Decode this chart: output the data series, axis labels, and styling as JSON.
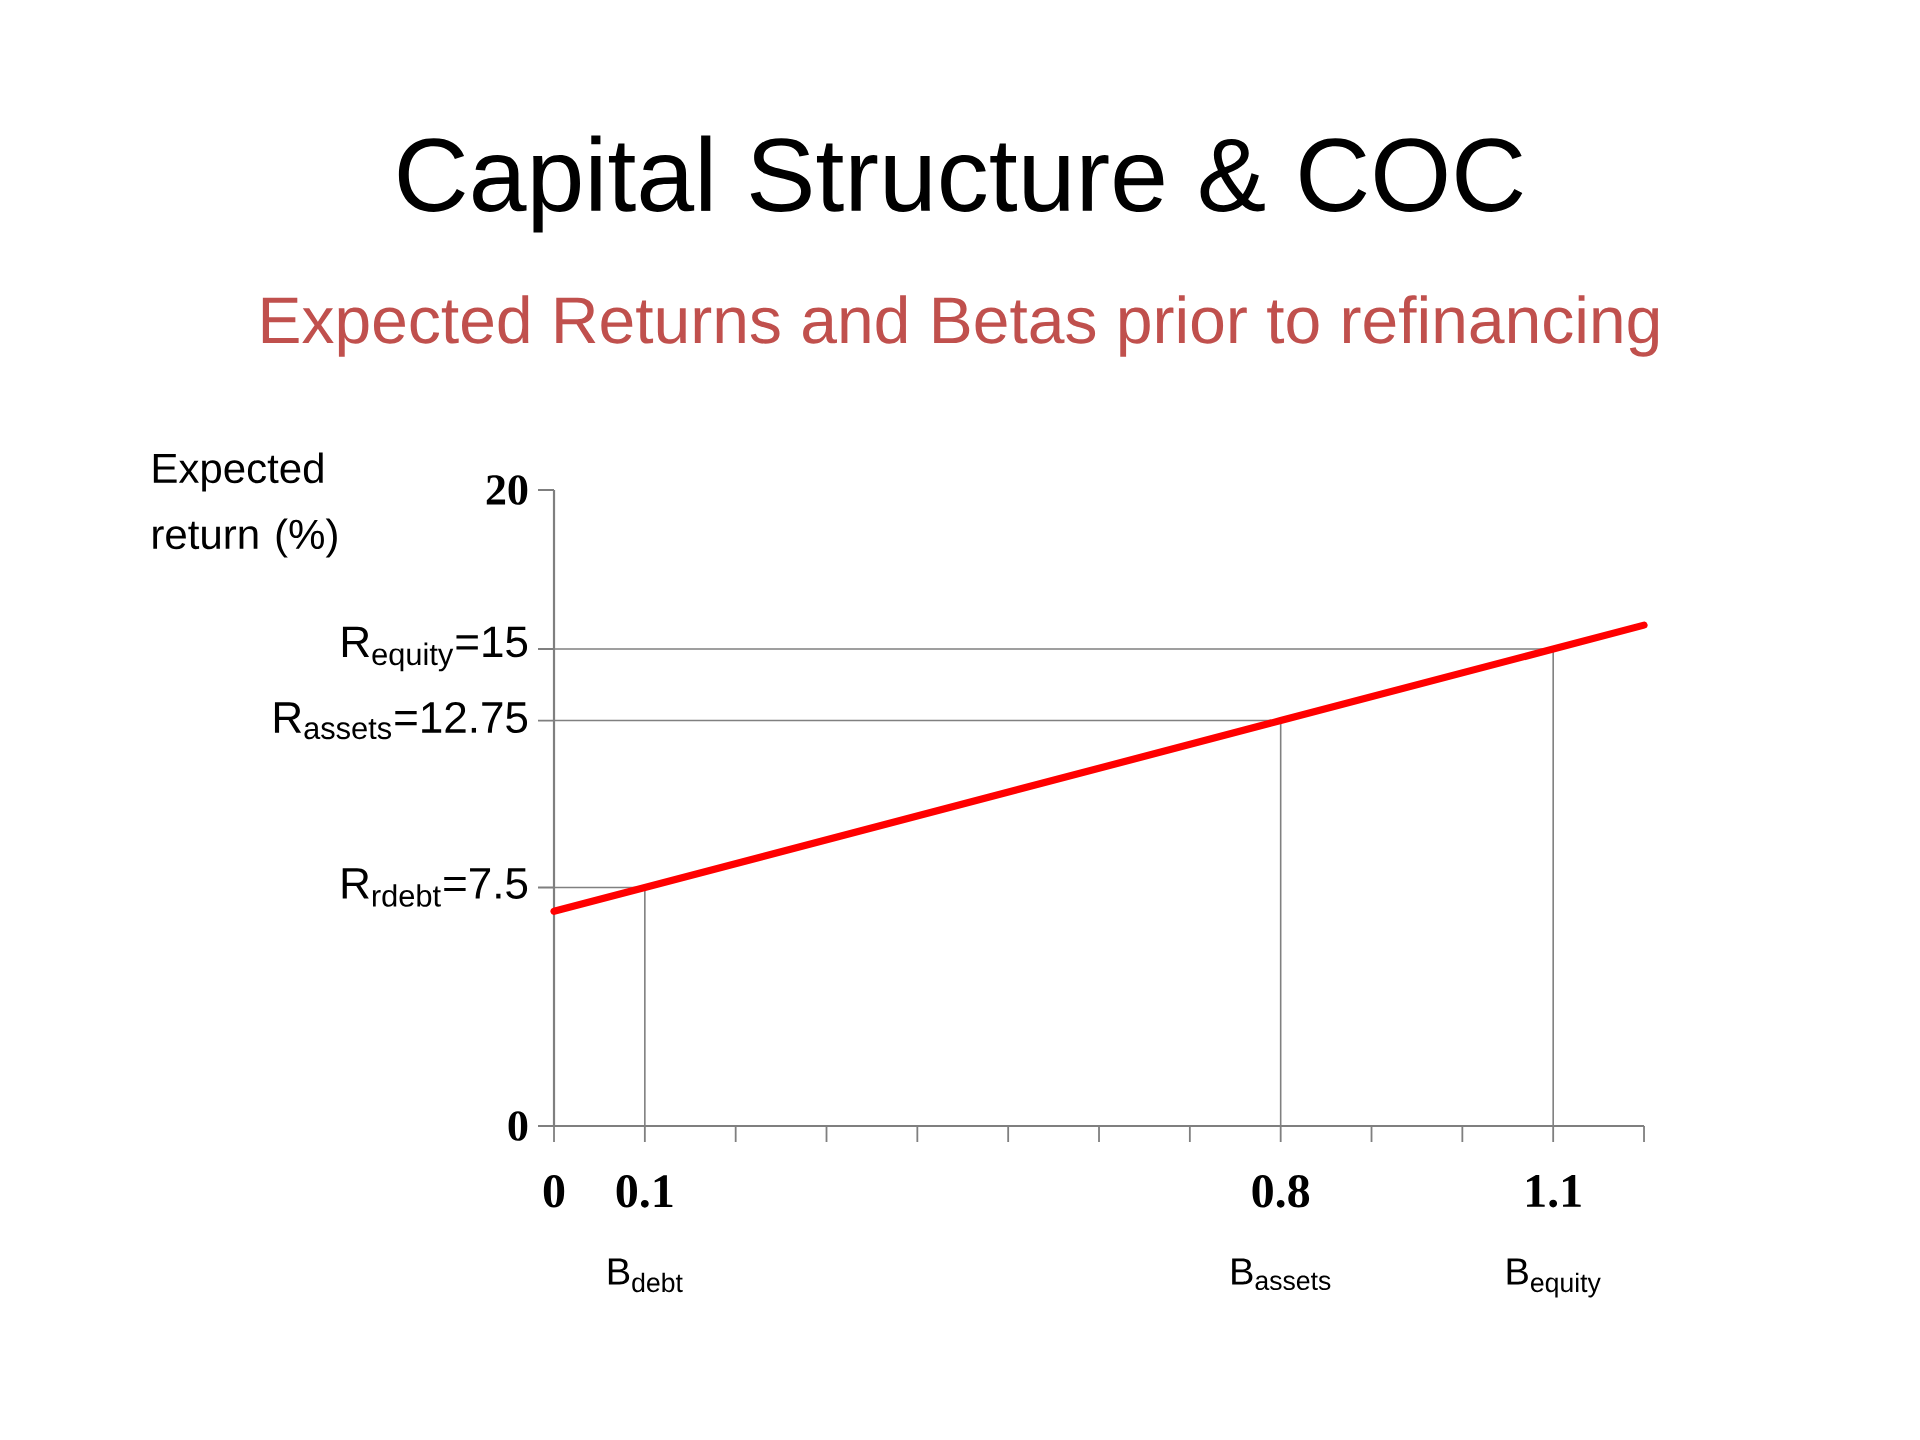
{
  "chart_data": {
    "type": "line",
    "title": "Capital Structure & COC",
    "subtitle": "Expected Returns and Betas prior to refinancing",
    "ylabel": "Expected return (%)",
    "series": [
      {
        "color": "#ff0000",
        "x": [
          0,
          0.1,
          0.8,
          1.1,
          1.2
        ],
        "values": [
          6.75,
          7.5,
          12.75,
          15,
          15.75
        ]
      },
      {
        "color": "#808080",
        "x": [
          0,
          0.1,
          0.1
        ],
        "values": [
          7.5,
          7.5,
          0
        ]
      },
      {
        "color": "#808080",
        "x": [
          0,
          0.8,
          0.8
        ],
        "values": [
          12.75,
          12.75,
          0
        ]
      },
      {
        "color": "#808080",
        "x": [
          0,
          1.1,
          1.1
        ],
        "values": [
          15,
          15,
          0
        ]
      }
    ],
    "xlim": [
      0,
      1.2
    ],
    "ylim": [
      0,
      20
    ],
    "xticks": [
      0,
      0.1,
      {
        "value": 0.2,
        "label": null
      },
      {
        "value": 0.3,
        "label": null
      },
      {
        "value": 0.4,
        "label": null
      },
      {
        "value": 0.5,
        "label": null
      },
      {
        "value": 0.6,
        "label": null
      },
      {
        "value": 0.7,
        "label": null
      },
      0.8,
      {
        "value": 0.9,
        "label": null
      },
      {
        "value": 1.0,
        "label": null
      },
      1.1,
      {
        "value": 1.2,
        "label": null
      }
    ],
    "yticks": [
      0,
      {
        "value": 7.5,
        "label": "R$_{rdebt}$=7.5"
      },
      {
        "value": 12.75,
        "label": "R$_{assets}$=12.75"
      },
      {
        "value": 15,
        "label": "R$_{equity}$=15"
      },
      20
    ],
    "annotations": [
      "B$_{debt}$",
      "B$_{assets}$",
      "B$_{equity}$"
    ],
    "marker": "none",
    "line_style": "solid"
  }
}
